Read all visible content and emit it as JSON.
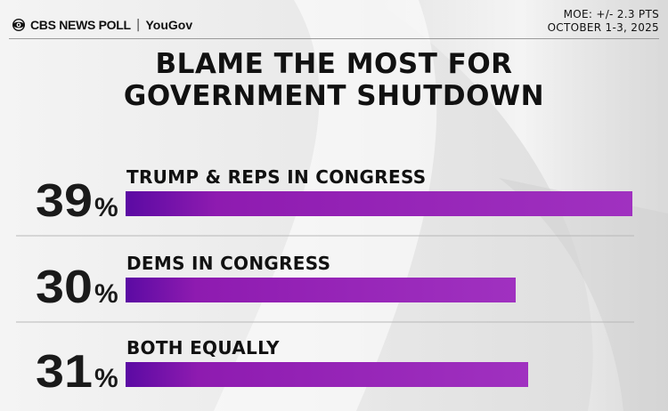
{
  "header": {
    "brand": "CBS NEWS POLL",
    "separator": "|",
    "partner": "YouGov",
    "moe": "MOE: +/- 2.3 PTS",
    "dates": "OCTOBER 1-3, 2025"
  },
  "colors": {
    "bar_start": "#5b0aa3",
    "bar_mid": "#8e1bb0",
    "bar_end": "#a031c0",
    "divider": "#b8b8b8"
  },
  "chart_data": {
    "type": "bar",
    "title": "BLAME THE MOST FOR GOVERNMENT SHUTDOWN",
    "title_lines": [
      "BLAME THE MOST FOR",
      "GOVERNMENT SHUTDOWN"
    ],
    "categories": [
      "TRUMP & REPS IN CONGRESS",
      "DEMS IN CONGRESS",
      "BOTH EQUALLY"
    ],
    "values": [
      39,
      30,
      31
    ],
    "value_labels": [
      "39",
      "30",
      "31"
    ],
    "unit": "%"
  }
}
